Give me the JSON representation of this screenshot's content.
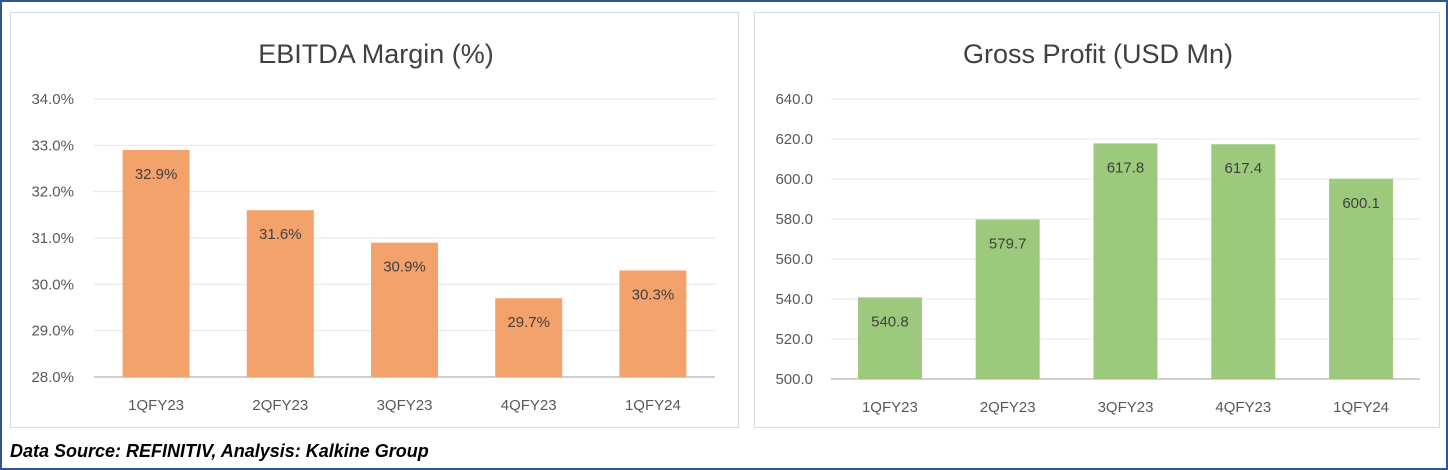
{
  "footer": {
    "source": "Data Source: REFINITIV, Analysis: Kalkine Group"
  },
  "chart_data": [
    {
      "type": "bar",
      "title": "EBITDA Margin (%)",
      "categories": [
        "1QFY23",
        "2QFY23",
        "3QFY23",
        "4QFY23",
        "1QFY24"
      ],
      "values": [
        32.9,
        31.6,
        30.9,
        29.7,
        30.3
      ],
      "value_labels": [
        "32.9%",
        "31.6%",
        "30.9%",
        "29.7%",
        "30.3%"
      ],
      "ylim": [
        28,
        34
      ],
      "yticks": [
        28,
        29,
        30,
        31,
        32,
        33,
        34
      ],
      "ytick_labels": [
        "28.0%",
        "29.0%",
        "30.0%",
        "31.0%",
        "32.0%",
        "33.0%",
        "34.0%"
      ],
      "grid": true,
      "color": "#f4a26c"
    },
    {
      "type": "bar",
      "title": "Gross Profit (USD Mn)",
      "categories": [
        "1QFY23",
        "2QFY23",
        "3QFY23",
        "4QFY23",
        "1QFY24"
      ],
      "values": [
        540.8,
        579.7,
        617.8,
        617.4,
        600.1
      ],
      "value_labels": [
        "540.8",
        "579.7",
        "617.8",
        "617.4",
        "600.1"
      ],
      "ylim": [
        500,
        640
      ],
      "yticks": [
        500,
        520,
        540,
        560,
        580,
        600,
        620,
        640
      ],
      "ytick_labels": [
        "500.0",
        "520.0",
        "540.0",
        "560.0",
        "580.0",
        "600.0",
        "620.0",
        "640.0"
      ],
      "grid": true,
      "color": "#9dc97c"
    }
  ]
}
